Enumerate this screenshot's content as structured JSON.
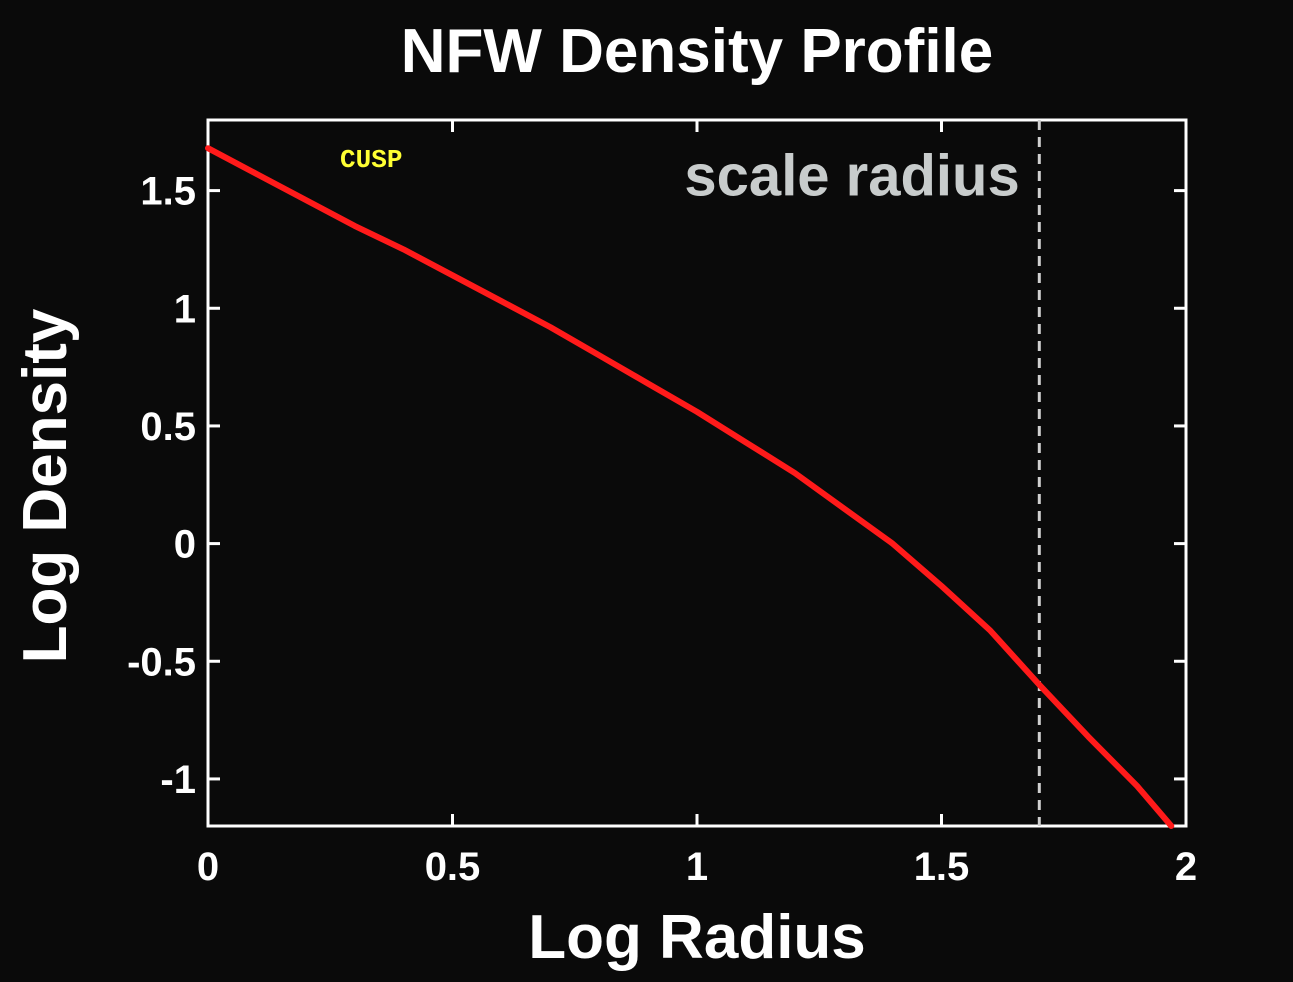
{
  "chart_data": {
    "type": "line",
    "title": "NFW Density Profile",
    "xlabel": "Log Radius",
    "ylabel": "Log Density",
    "xlim": [
      0,
      2
    ],
    "ylim": [
      -1.2,
      1.8
    ],
    "xticks": [
      0,
      0.5,
      1,
      1.5,
      2
    ],
    "xtick_labels": [
      "0",
      "0.5",
      "1",
      "1.5",
      "2"
    ],
    "yticks": [
      -1,
      -0.5,
      0,
      0.5,
      1,
      1.5
    ],
    "ytick_labels": [
      "-1",
      "-0.5",
      "0",
      "0.5",
      "1",
      "1.5"
    ],
    "grid": false,
    "background_color": "#0a0a0a",
    "axes_color": "#ffffff",
    "series": [
      {
        "color": "#ff1a1a",
        "x": [
          0,
          0.1,
          0.2,
          0.3,
          0.4,
          0.5,
          0.6,
          0.7,
          0.8,
          0.9,
          1.0,
          1.1,
          1.2,
          1.3,
          1.4,
          1.5,
          1.6,
          1.7,
          1.8,
          1.9,
          1.97
        ],
        "y": [
          1.68,
          1.57,
          1.46,
          1.35,
          1.25,
          1.14,
          1.03,
          0.92,
          0.8,
          0.68,
          0.56,
          0.43,
          0.3,
          0.15,
          0.0,
          -0.18,
          -0.37,
          -0.6,
          -0.82,
          -1.03,
          -1.2
        ]
      }
    ],
    "reference_lines": [
      {
        "orientation": "vertical",
        "x": 1.7,
        "style": "dashed",
        "color": "#d0d0d0"
      }
    ],
    "annotations": [
      {
        "text": "scale radius",
        "x": 1.66,
        "y": 1.48,
        "color": "#c8cccc",
        "anchor": "end"
      },
      {
        "text": "CUSP",
        "x": 0.27,
        "y": 1.6,
        "color": "#ffff33",
        "anchor": "start"
      }
    ]
  }
}
